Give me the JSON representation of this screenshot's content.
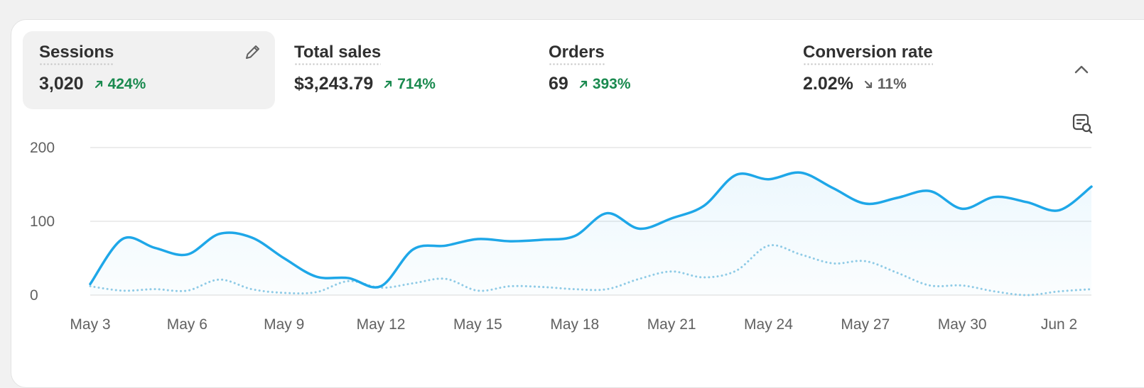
{
  "metrics": [
    {
      "label": "Sessions",
      "value": "3,020",
      "change": "424%",
      "direction": "up"
    },
    {
      "label": "Total sales",
      "value": "$3,243.79",
      "change": "714%",
      "direction": "up"
    },
    {
      "label": "Orders",
      "value": "69",
      "change": "393%",
      "direction": "up"
    },
    {
      "label": "Conversion rate",
      "value": "2.02%",
      "change": "11%",
      "direction": "down"
    }
  ],
  "icons": {
    "edit": "pencil-icon",
    "collapse": "chevron-up-icon",
    "analyze": "chart-search-icon"
  },
  "colors": {
    "primary_line": "#1ea7e8",
    "comparison_line": "#8fcbe6",
    "positive": "#1a8a4f",
    "neutral": "#616161"
  },
  "chart_data": {
    "type": "line",
    "title": "",
    "xlabel": "",
    "ylabel": "",
    "ylim": [
      0,
      200
    ],
    "yticks": [
      "0",
      "100",
      "200"
    ],
    "xtick_labels": [
      "May 3",
      "May 6",
      "May 9",
      "May 12",
      "May 15",
      "May 18",
      "May 21",
      "May 24",
      "May 27",
      "May 30",
      "Jun 2"
    ],
    "grid": true,
    "legend": "none",
    "x": [
      "May 3",
      "May 4",
      "May 5",
      "May 6",
      "May 7",
      "May 8",
      "May 9",
      "May 10",
      "May 11",
      "May 12",
      "May 13",
      "May 14",
      "May 15",
      "May 16",
      "May 17",
      "May 18",
      "May 19",
      "May 20",
      "May 21",
      "May 22",
      "May 23",
      "May 24",
      "May 25",
      "May 26",
      "May 27",
      "May 28",
      "May 29",
      "May 30",
      "May 31",
      "Jun 1",
      "Jun 2",
      "Jun 3"
    ],
    "series": [
      {
        "values": [
          15,
          76,
          64,
          55,
          83,
          78,
          50,
          25,
          23,
          12,
          62,
          67,
          76,
          73,
          75,
          80,
          111,
          90,
          104,
          121,
          163,
          157,
          166,
          145,
          124,
          132,
          141,
          117,
          133,
          126,
          115,
          147
        ],
        "style": "solid"
      },
      {
        "values": [
          12,
          6,
          8,
          6,
          21,
          8,
          3,
          4,
          19,
          10,
          16,
          22,
          6,
          12,
          11,
          8,
          8,
          22,
          32,
          24,
          33,
          67,
          55,
          43,
          46,
          30,
          13,
          13,
          5,
          0,
          5,
          8
        ],
        "style": "dotted"
      }
    ]
  }
}
